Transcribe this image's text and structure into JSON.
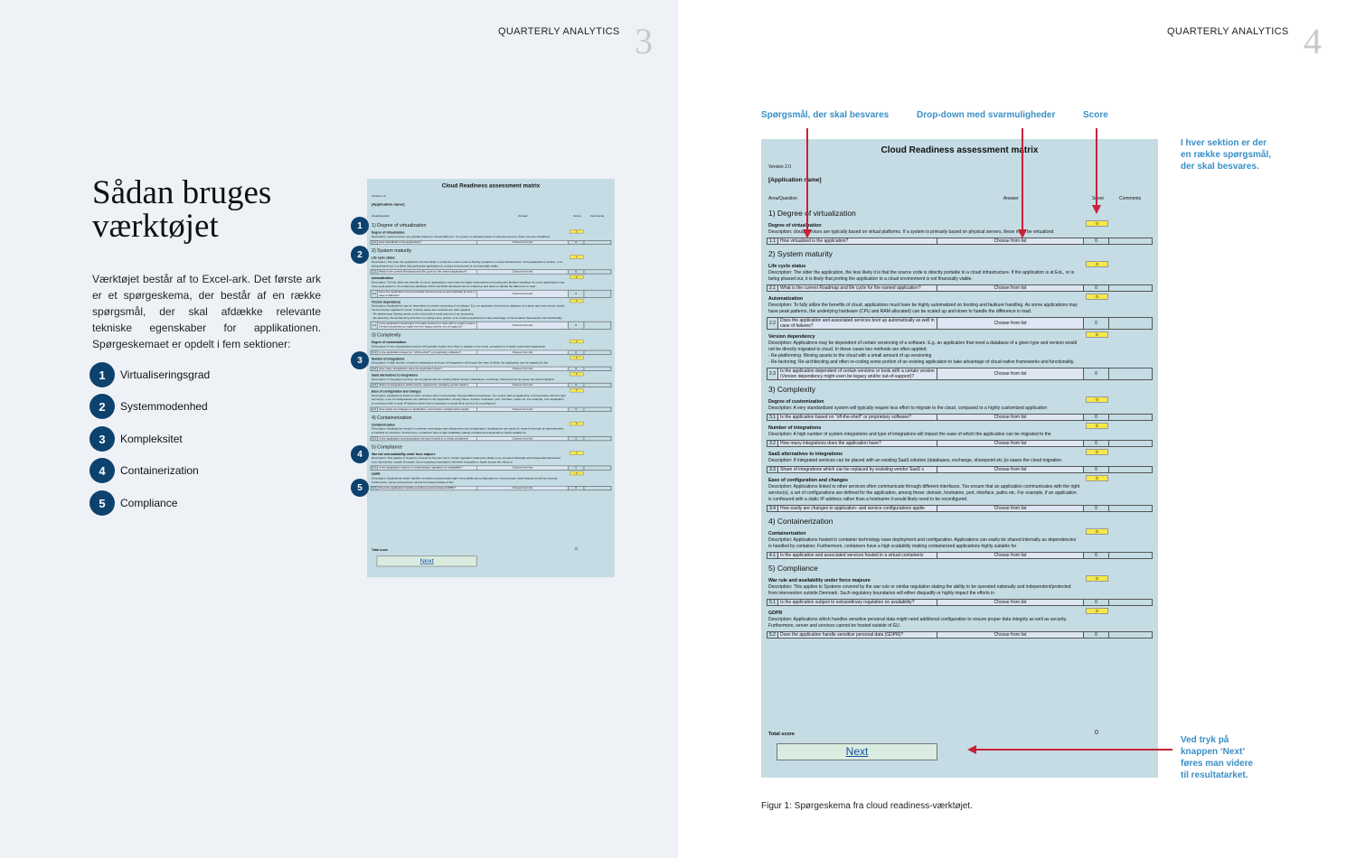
{
  "left_page": {
    "running_header": "QUARTERLY ANALYTICS",
    "page_number": "3",
    "heading": [
      "Sådan bruges",
      "værktøjet"
    ],
    "paragraph": "Værktøjet består af to Excel-ark. Det første ark er et spørgeskema, der består af en række spørgsmål, der skal afdække relevante tekniske egenskaber for applikationen. Spørgeskemaet er opdelt i fem sektioner:",
    "list": [
      {
        "number": "1",
        "label": "Virtualiseringsgrad"
      },
      {
        "number": "2",
        "label": "Systemmodenhed"
      },
      {
        "number": "3",
        "label": "Kompleksitet"
      },
      {
        "number": "4",
        "label": "Containerization"
      },
      {
        "number": "5",
        "label": "Compliance"
      }
    ]
  },
  "right_page": {
    "running_header": "QUARTERLY ANALYTICS",
    "page_number": "4",
    "annotations": {
      "questions": "Spørgsmål, der skal besvares",
      "dropdown": "Drop-down med svarmuligheder",
      "score": "Score",
      "sections_note": [
        "I hver sektion er der",
        "en række spørgsmål,",
        "der skal besvares."
      ],
      "next_note": [
        "Ved tryk på",
        "knappen ‘Next’",
        "føres man videre",
        "til resultatarket."
      ]
    },
    "caption": "Figur 1: Spørgeskema fra cloud readiness-værktøjet."
  },
  "matrix": {
    "title": "Cloud Readiness assessment matrix",
    "version": "Version 2.0",
    "app_name": "[Application name]",
    "headers": {
      "area": "Area/Question",
      "answer": "Answer",
      "score": "Score",
      "comments": "Comments"
    },
    "sections": [
      {
        "title": "1) Degree of virtualization",
        "items": [
          {
            "title": "Degree of virtualization",
            "description": [
              "Description: cloud services are typically based on virtual platforms. If a system is primarily based on physical servers, these must be virtualized"
            ],
            "score": 0,
            "question": {
              "number": "1.1",
              "text": "How virtualized is the application?",
              "answer": "Choose from list",
              "score": 0
            }
          }
        ]
      },
      {
        "title": "2) System maturity",
        "items": [
          {
            "title": "Life cycle status",
            "description": [
              "Description: The older the application, the less likely it is that the source code is directly portable to a cloud infrastructure. If the application is at EoL, or is being phased out, it is likely that porting the application to a cloud environment is not financially viable."
            ],
            "score": 0,
            "question": {
              "number": "2.1",
              "text": "What is the current Roadmap and life cycle for the named application?",
              "answer": "Choose from list",
              "score": 0
            }
          },
          {
            "title": "Automatization",
            "description": [
              "Description: To fully utilize the benefits of cloud, applications must have be highly automatized on booting and faulkure handling. As some applications may have peak patterns,  the underlying hardware (CPU and RAM allocated) can be scaled up and down to handle the difference in load."
            ],
            "score": 0,
            "question": {
              "number": "2.2",
              "text": "Does the application and associated services boot up automatically as well in case of failures?",
              "answer": "Choose from list",
              "score": 0
            }
          },
          {
            "title": "Version dependency",
            "description": [
              "Description: Applications may be dependent of certain versioning of a software. E.g. an application that need a database of a given type and version would not be directly migrated to cloud. In these cases two methods are often applied:",
              "- Re-platforming: Moving assets to the cloud with a small amount of up-versioning",
              "- Re-factoring: Re-architecting and often re-coding some portion of an existing application to take advantage of cloud-native frameworks and functionality."
            ],
            "score": 0,
            "question": {
              "number": "2.3",
              "text": "Is the application dependent of certain versions or tools with a certain version (Version dependency might even be legacy and/or out-of-support)?",
              "answer": "Choose from list",
              "score": 0
            }
          }
        ]
      },
      {
        "title": "3) Complexity",
        "items": [
          {
            "title": "Degree of customization",
            "description": [
              "Description: A very standardized system will typically require less effort to migrate to the cloud, compared to a highly customized application"
            ],
            "score": 0,
            "question": {
              "number": "3.1",
              "text": "Is the application based on \"off-the-shelf\" or proprietary software?",
              "answer": "Choose from list",
              "score": 0
            }
          },
          {
            "title": "Number of integrations",
            "description": [
              "Description: A high number of system integrations and type of integrations will impact the ease of which the application can be migrated to the"
            ],
            "score": 0,
            "question": {
              "number": "3.2",
              "text": "How many integrations does the application have?",
              "answer": "Choose from list",
              "score": 0
            }
          },
          {
            "title": "SaaS alternatives to integrations",
            "description": [
              "Description: If integrated services can be placed with an existing SaaS solution (databases, exchange, sharepoint etc.)is eases the cloud migration."
            ],
            "score": 0,
            "question": {
              "number": "3.3",
              "text": "Share of integrations which can be replaced by exsisting vendor SaaS s",
              "answer": "Choose from list",
              "score": 0
            }
          },
          {
            "title": "Ease of configuration and changes",
            "description": [
              "Description: Applications linked to other services often communicate through different interfaces. Too ensure that an application communicates with the right service(s), a set of configurations are defined for the application, among these: domain, hostname, port, interface, paths etc. For example, if an application is confioured with a static IP address rather than a hostname it would likely need to be reconfigured."
            ],
            "score": 0,
            "question": {
              "number": "3.4",
              "text": "How easily are changes to application- and service configurations applie",
              "answer": "Choose from list",
              "score": 0
            }
          }
        ]
      },
      {
        "title": "4) Containerization",
        "items": [
          {
            "title": "Containerization",
            "description": [
              "Description: Applications hosted in container technology ease deployment and configuration. Applications can easily be shared internally as dependencies is handled by container. Furthermore, containers have a high scalability making containerized applications highly suitable for"
            ],
            "score": 0,
            "question": {
              "number": "4.1",
              "text": "Is the application and associated services hosted in a virtual containeriz",
              "answer": "Choose from list",
              "score": 0
            }
          }
        ]
      },
      {
        "title": "5) Compliance",
        "items": [
          {
            "title": "War rule and availability under force majeure",
            "description": [
              "Description: This applies to Systems covered by the war rule or similar regulation stating the ability to be operated nationally and independent/protected from intervention outside Denmark. Such regulatory boundaries will either disqualify or highly impact the efforts in"
            ],
            "score": 0,
            "question": {
              "number": "5.1",
              "text": "Is the application subject to extraordinary regulation on availability?",
              "answer": "Choose from list",
              "score": 0
            }
          },
          {
            "title": "GDPR",
            "description": [
              "Description: Applications which handles sensitive personal data might need additional configuration to ensure proper data integrity as well as security. Furthermore, server and services cannot be hosted outside of EU."
            ],
            "score": 0,
            "question": {
              "number": "5.2",
              "text": "Does the application handle sensitive personal data (GDPR)?",
              "answer": "Choose from list",
              "score": 0
            }
          }
        ]
      }
    ],
    "total_label": "Total score",
    "total_score": 0,
    "button": "Next"
  }
}
